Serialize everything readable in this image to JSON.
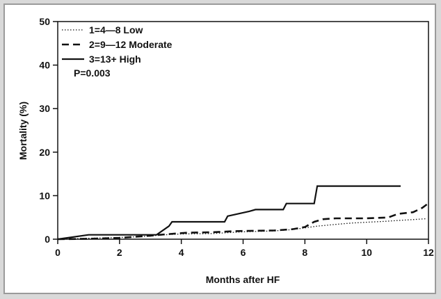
{
  "chart_data": {
    "type": "line",
    "title": "",
    "xlabel": "Months after HF",
    "ylabel": "Mortality (%)",
    "xlim": [
      0,
      12
    ],
    "ylim": [
      0,
      50
    ],
    "xticks": [
      0,
      2,
      4,
      6,
      8,
      10,
      12
    ],
    "yticks": [
      0,
      10,
      20,
      30,
      40,
      50
    ],
    "grid": false,
    "legend_position": "top-left",
    "annotation": "P=0.003",
    "series": [
      {
        "name": "1=4—8 Low",
        "style": "dotted",
        "color": "#111111",
        "x": [
          0,
          1,
          2,
          3,
          3.2,
          3.7,
          4,
          5,
          5.5,
          6,
          7,
          7.6,
          8,
          8.4,
          9,
          9.5,
          10,
          10.6,
          11,
          11.5,
          11.9
        ],
        "y": [
          0,
          0.2,
          0.4,
          0.7,
          0.9,
          1.1,
          1.2,
          1.3,
          1.5,
          1.7,
          1.9,
          2.2,
          2.6,
          3.0,
          3.4,
          3.7,
          3.9,
          4.1,
          4.3,
          4.5,
          4.7
        ]
      },
      {
        "name": "2=9—12 Moderate",
        "style": "dashed",
        "color": "#111111",
        "x": [
          0,
          1,
          2,
          3,
          3.3,
          3.8,
          4.2,
          5,
          5.6,
          6,
          7,
          7.6,
          8.0,
          8.3,
          8.6,
          9,
          9.5,
          10,
          10.7,
          11,
          11.5,
          11.8,
          11.95
        ],
        "y": [
          0,
          0.1,
          0.3,
          0.8,
          1.0,
          1.3,
          1.5,
          1.6,
          1.8,
          1.9,
          2.0,
          2.3,
          2.8,
          4.0,
          4.6,
          4.8,
          4.8,
          4.8,
          5.0,
          5.8,
          6.2,
          7.2,
          8.0
        ]
      },
      {
        "name": "3=13+ High",
        "style": "solid",
        "color": "#111111",
        "x": [
          0,
          1,
          2,
          3.2,
          3.6,
          3.7,
          4.5,
          5.4,
          5.5,
          6.2,
          6.4,
          7.3,
          7.4,
          7.8,
          8.3,
          8.4,
          9,
          10,
          11.1
        ],
        "y": [
          0,
          1.0,
          1.0,
          1.0,
          3.0,
          4.0,
          4.0,
          4.0,
          5.3,
          6.4,
          6.8,
          6.8,
          8.2,
          8.2,
          8.2,
          12.2,
          12.2,
          12.2,
          12.2
        ]
      }
    ]
  }
}
